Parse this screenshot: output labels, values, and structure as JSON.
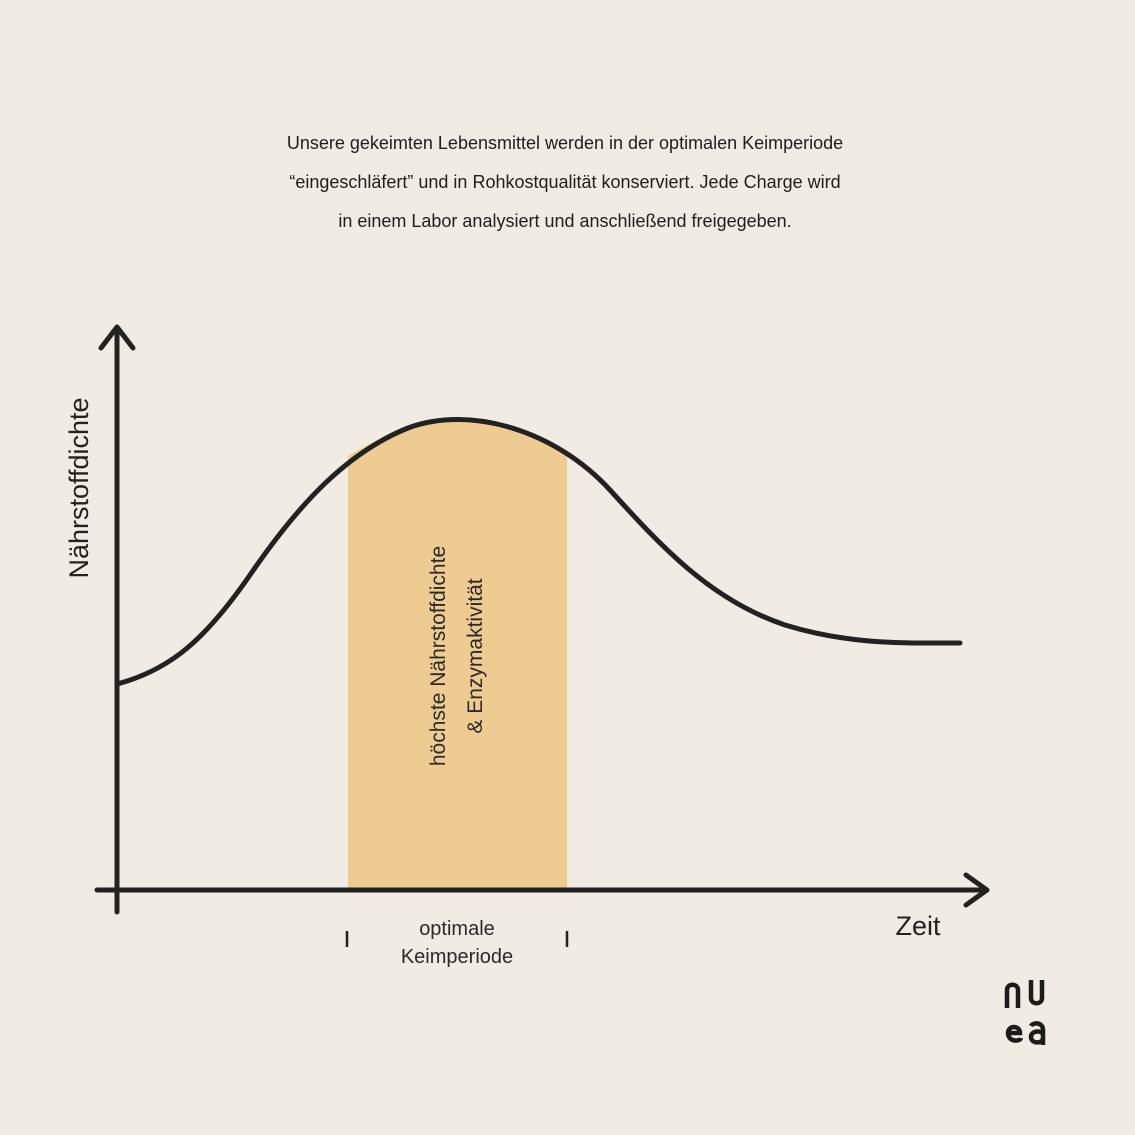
{
  "intro": {
    "line1": "Unsere gekeimten Lebensmittel werden in der optimalen Keimperiode",
    "line2": "“eingeschläfert” und in Rohkostqualität konserviert. Jede Charge wird",
    "line3": "in einem Labor analysiert und anschließend freigegeben."
  },
  "chart_data": {
    "type": "line",
    "ylabel": "Nährstoffdichte",
    "xlabel": "Zeit",
    "grid": false,
    "legend": "none",
    "curve_shape": "rises from a low start to a single peak inside the highlighted period, then declines and levels off",
    "highlight": {
      "label_line1": "höchste Nährstoffdichte",
      "label_line2": "& Enzymaktivität",
      "color": "#edcb91"
    },
    "period": {
      "label_line1": "optimale",
      "label_line2": "Keimperiode"
    }
  },
  "colors": {
    "background": "#f1ece3",
    "ink": "#222222",
    "highlight": "#edcb91"
  },
  "brand": {
    "logo_text": "nuea",
    "icon": "nuea-logo"
  }
}
